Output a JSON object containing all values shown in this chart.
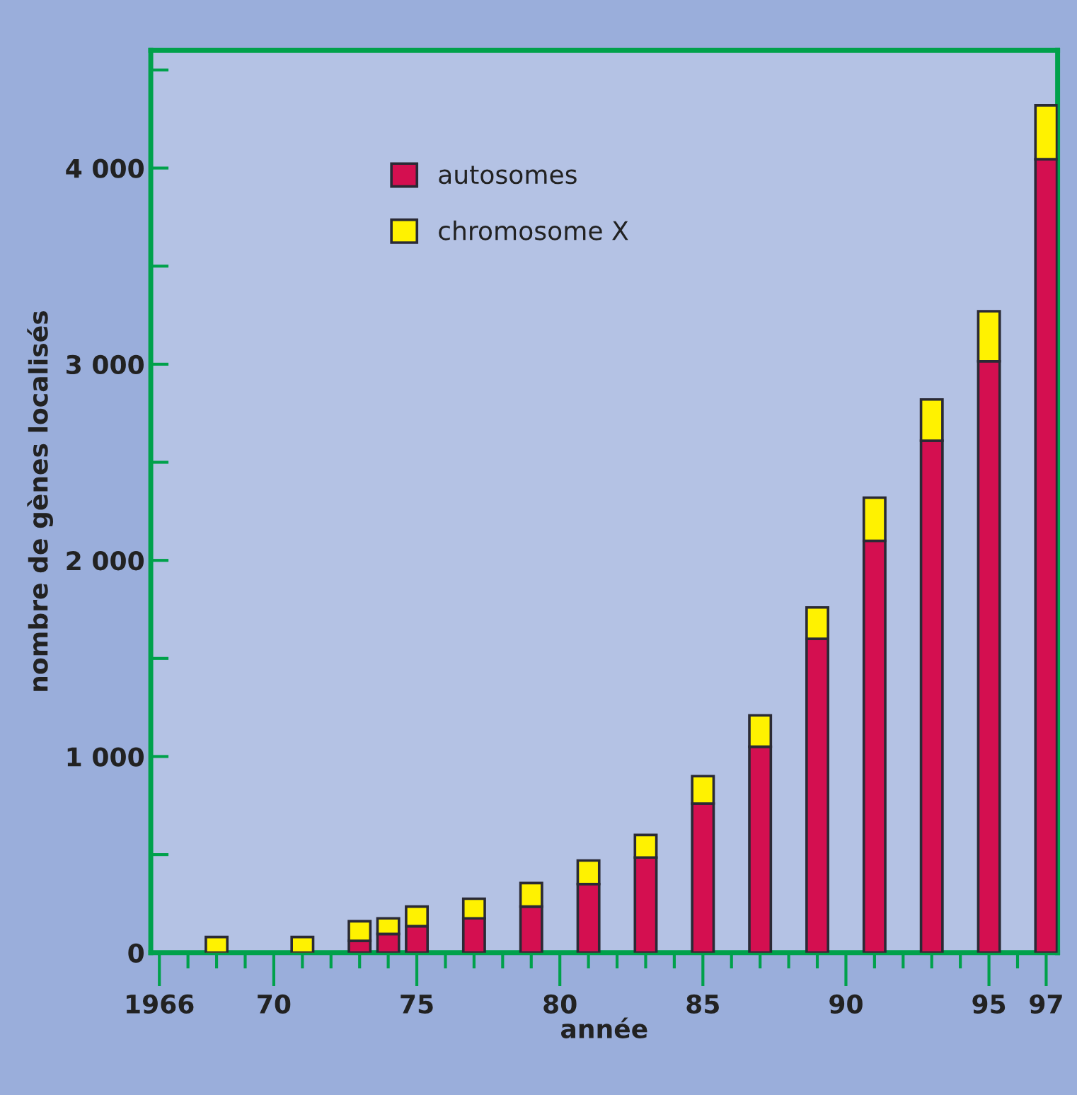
{
  "chart_data": {
    "type": "bar",
    "stacked": true,
    "xlabel": "année",
    "ylabel": "nombre de gènes localisés",
    "x": [
      1968,
      1971,
      1973,
      1974,
      1975,
      1977,
      1979,
      1981,
      1983,
      1985,
      1987,
      1989,
      1991,
      1993,
      1995,
      1997
    ],
    "series": [
      {
        "name": "autosomes",
        "color": "#d40f50",
        "values": [
          0,
          0,
          60,
          95,
          135,
          175,
          235,
          350,
          485,
          760,
          1050,
          1600,
          2100,
          2610,
          3015,
          4045
        ]
      },
      {
        "name": "chromosome X",
        "color": "#fff200",
        "values": [
          80,
          80,
          100,
          80,
          100,
          100,
          120,
          120,
          115,
          140,
          160,
          160,
          220,
          210,
          255,
          275
        ]
      }
    ],
    "xlim": [
      1965.7,
      1997.4
    ],
    "xticks": [
      {
        "value": 1966,
        "label": "1966"
      },
      {
        "value": 1967,
        "label": null
      },
      {
        "value": 1968,
        "label": null
      },
      {
        "value": 1969,
        "label": null
      },
      {
        "value": 1970,
        "label": "70"
      },
      {
        "value": 1971,
        "label": null
      },
      {
        "value": 1972,
        "label": null
      },
      {
        "value": 1973,
        "label": null
      },
      {
        "value": 1974,
        "label": null
      },
      {
        "value": 1975,
        "label": "75"
      },
      {
        "value": 1976,
        "label": null
      },
      {
        "value": 1977,
        "label": null
      },
      {
        "value": 1978,
        "label": null
      },
      {
        "value": 1979,
        "label": null
      },
      {
        "value": 1980,
        "label": "80"
      },
      {
        "value": 1981,
        "label": null
      },
      {
        "value": 1982,
        "label": null
      },
      {
        "value": 1983,
        "label": null
      },
      {
        "value": 1984,
        "label": null
      },
      {
        "value": 1985,
        "label": "85"
      },
      {
        "value": 1986,
        "label": null
      },
      {
        "value": 1987,
        "label": null
      },
      {
        "value": 1988,
        "label": null
      },
      {
        "value": 1989,
        "label": null
      },
      {
        "value": 1990,
        "label": "90"
      },
      {
        "value": 1991,
        "label": null
      },
      {
        "value": 1992,
        "label": null
      },
      {
        "value": 1993,
        "label": null
      },
      {
        "value": 1994,
        "label": null
      },
      {
        "value": 1995,
        "label": "95"
      },
      {
        "value": 1996,
        "label": null
      },
      {
        "value": 1997,
        "label": "97"
      }
    ],
    "ylim": [
      0,
      4600
    ],
    "yticks": [
      0,
      {
        "value": 500,
        "label": null
      },
      {
        "value": 1000,
        "label": "1 000"
      },
      {
        "value": 1500,
        "label": null
      },
      {
        "value": 2000,
        "label": "2 000"
      },
      {
        "value": 2500,
        "label": null
      },
      {
        "value": 3000,
        "label": "3 000"
      },
      {
        "value": 3500,
        "label": null
      },
      {
        "value": 4000,
        "label": "4 000"
      },
      {
        "value": 4500,
        "label": null
      }
    ],
    "grid": false,
    "legend": "top left"
  }
}
